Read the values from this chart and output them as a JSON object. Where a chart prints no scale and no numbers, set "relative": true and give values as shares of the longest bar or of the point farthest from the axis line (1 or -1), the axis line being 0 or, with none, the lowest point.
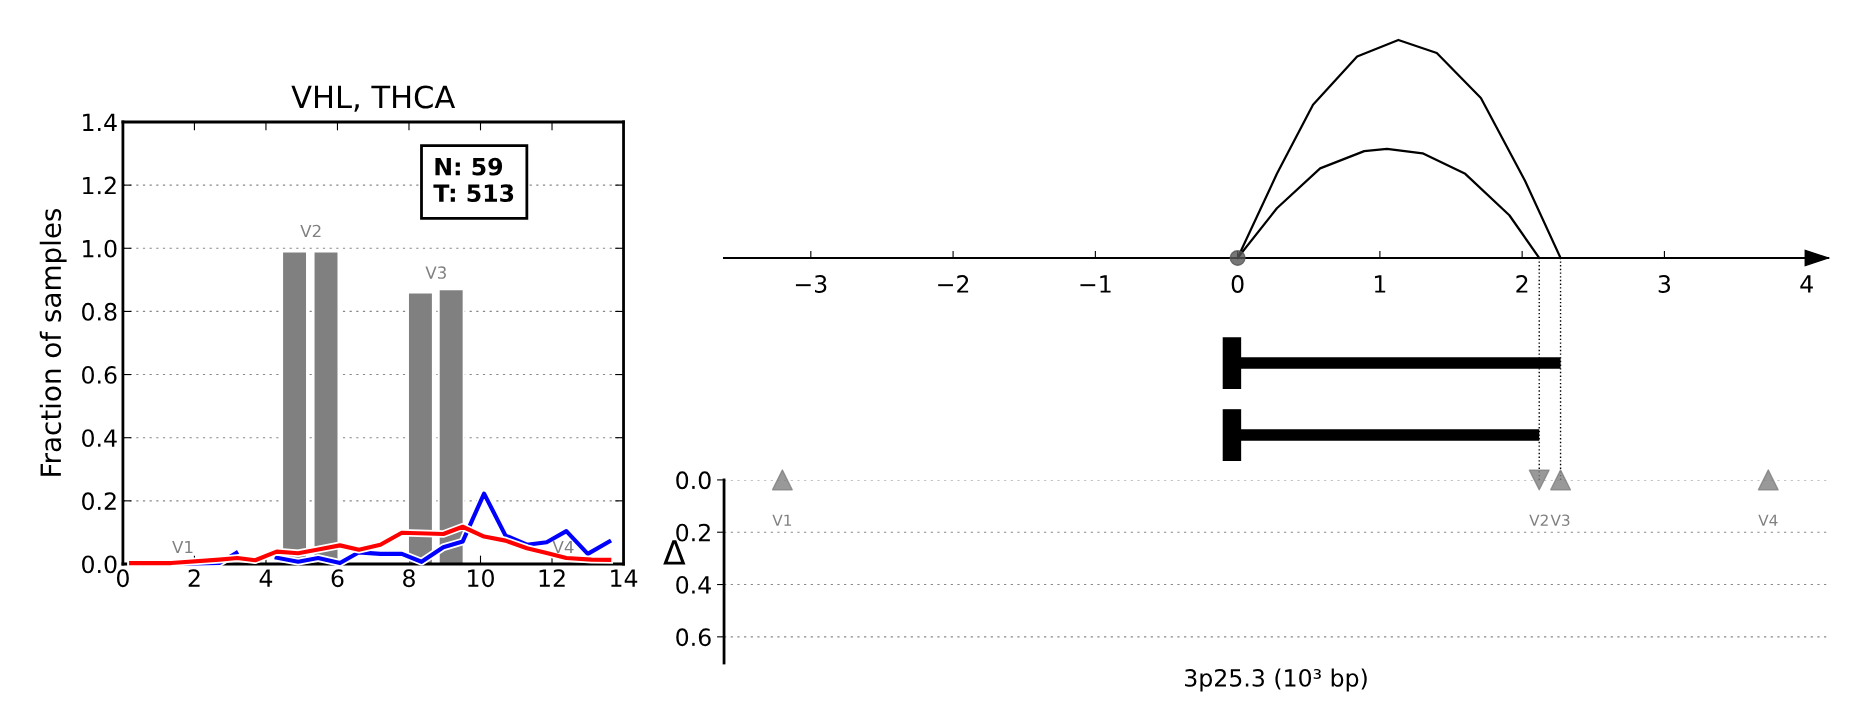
{
  "chart_data": [
    {
      "type": "line",
      "title": "VHL, THCA",
      "ylabel": "Fraction of samples",
      "xlim": [
        0,
        14
      ],
      "xticks": [
        0,
        2,
        4,
        6,
        8,
        10,
        12,
        14
      ],
      "ylim": [
        0,
        1.4
      ],
      "yticks": [
        {
          "value": 0,
          "label": "0.0"
        },
        {
          "value": 0.2,
          "label": "0.2"
        },
        {
          "value": 0.4,
          "label": "0.4"
        },
        {
          "value": 0.6,
          "label": "0.6"
        },
        {
          "value": 0.8,
          "label": "0.8"
        },
        {
          "value": 1,
          "label": "1.0"
        },
        {
          "value": 1.2,
          "label": "1.2"
        },
        {
          "value": 1.4,
          "label": "1.4"
        }
      ],
      "grid": "y",
      "series": [
        {
          "type": "bar",
          "color": "#808080",
          "x": [
            4.8,
            5.68,
            8.32,
            9.18
          ],
          "values": [
            0.99,
            0.99,
            0.86,
            0.87
          ]
        },
        {
          "type": "line",
          "color": "#0000ff",
          "x": [
            0.23,
            1.35,
            2.7,
            3.17,
            3.7,
            4.3,
            4.9,
            5.46,
            6.07,
            6.6,
            7.2,
            7.8,
            8.35,
            8.96,
            9.5,
            10.1,
            10.7,
            11.3,
            11.85,
            12.4,
            13.0,
            13.6
          ],
          "values": [
            0,
            0,
            0.003,
            0.035,
            null,
            0.02,
            0.007,
            0.019,
            0.003,
            0.037,
            0.032,
            0.032,
            0.007,
            0.053,
            0.071,
            0.223,
            0.09,
            0.061,
            0.069,
            0.104,
            0.032,
            0.071
          ]
        },
        {
          "type": "line",
          "color": "#ff0000",
          "x": [
            0.23,
            1.35,
            2.7,
            3.2,
            3.7,
            4.3,
            4.9,
            5.46,
            6.07,
            6.6,
            7.2,
            7.8,
            8.96,
            9.5,
            10.1,
            10.7,
            11.3,
            11.85,
            12.4,
            13.1,
            13.6
          ],
          "values": [
            0.003,
            0.003,
            0.014,
            0.019,
            0.012,
            0.039,
            0.034,
            0.046,
            0.059,
            0.045,
            0.061,
            0.099,
            0.095,
            0.118,
            0.087,
            0.074,
            0.05,
            0.035,
            0.019,
            0.014,
            0.013
          ]
        }
      ],
      "annotations": [
        "V1",
        "V2",
        "V3",
        "V4",
        "N: 59\nT: 513"
      ]
    },
    {
      "type": "line",
      "relative": true,
      "xlim": [
        -3.61,
        4.15
      ],
      "xticks": [
        {
          "value": -3,
          "label": "−3"
        },
        {
          "value": -2,
          "label": "−2"
        },
        {
          "value": -1,
          "label": "−1"
        },
        0,
        1,
        2,
        3,
        4
      ],
      "series": [
        {
          "color": "#000000",
          "x": [
            0,
            0.276,
            0.53,
            0.84,
            1.13,
            1.4,
            1.71,
            2.02,
            2.27
          ],
          "values": [
            0,
            0.386,
            0.703,
            0.924,
            1,
            0.94,
            0.734,
            0.354,
            0
          ]
        },
        {
          "color": "#000000",
          "x": [
            0,
            0.276,
            0.58,
            0.89,
            1.05,
            1.3,
            1.6,
            1.91,
            2.12
          ],
          "values": [
            0,
            0.228,
            0.411,
            0.49,
            0.5,
            0.48,
            0.386,
            0.196,
            0
          ]
        },
        {
          "type": "scatter",
          "color": "#555555",
          "marker": "circle",
          "x": [
            0
          ],
          "values": [
            0
          ]
        }
      ]
    },
    {
      "type": "bar",
      "orientation": "horizontal",
      "categories": [
        null,
        null
      ],
      "base": [
        0,
        0
      ],
      "values": [
        2.27,
        2.12
      ],
      "color": "#000000",
      "xlim": [
        -3.61,
        4.15
      ],
      "tick_labels": false,
      "ref_lines": [
        {
          "axis": "x",
          "value": 2.12,
          "color": "#000000",
          "line_style": "dotted"
        },
        {
          "axis": "x",
          "value": 2.27,
          "color": "#000000",
          "line_style": "dotted"
        }
      ]
    },
    {
      "type": "scatter",
      "xlabel": "3p25.3 (10³ bp)",
      "ylabel": "Δ",
      "xlim": [
        -3.61,
        4.15
      ],
      "ylim": [
        0.7,
        0
      ],
      "yticks": [
        {
          "value": 0,
          "label": "0.0"
        },
        {
          "value": 0.2,
          "label": "0.2"
        },
        {
          "value": 0.4,
          "label": "0.4"
        },
        {
          "value": 0.6,
          "label": "0.6"
        }
      ],
      "grid": "y",
      "tick_labels": "y",
      "series": [
        {
          "color": "#808080",
          "marker": "triangle",
          "x": [
            -3.2,
            2.27,
            3.73
          ],
          "values": [
            0,
            0,
            0
          ]
        },
        {
          "color": "#808080",
          "marker": "triangle_down",
          "x": [
            2.12
          ],
          "values": [
            0
          ]
        }
      ],
      "annotations": [
        {
          "text": "V1",
          "x": -3.2,
          "y": 0
        },
        {
          "text": "V2",
          "x": 2.12,
          "y": 0
        },
        {
          "text": "V3",
          "x": 2.27,
          "y": 0
        },
        {
          "text": "V4",
          "x": 3.73,
          "y": 0
        }
      ]
    }
  ]
}
